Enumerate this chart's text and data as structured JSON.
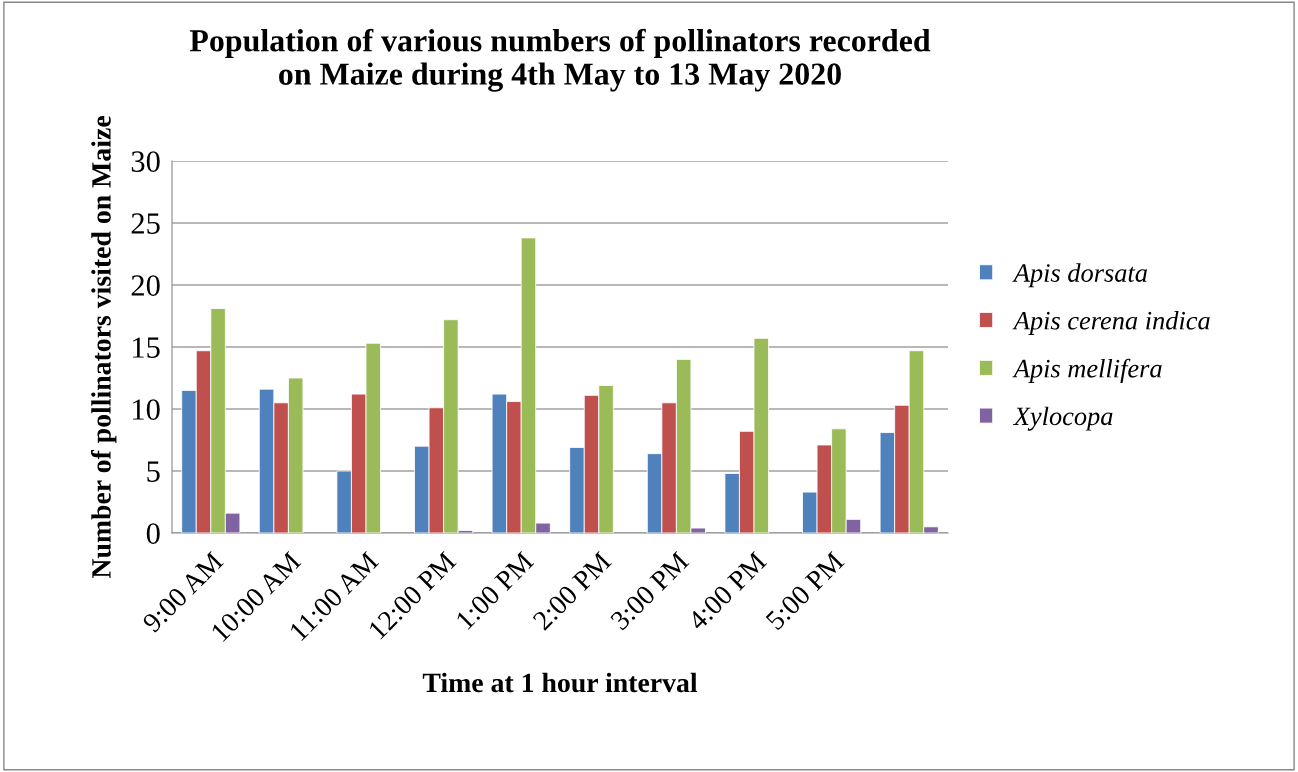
{
  "chart_data": {
    "type": "bar",
    "title": "Population of various numbers of pollinators recorded\non Maize during 4th May to 13 May 2020",
    "xlabel": "Time at 1 hour interval",
    "ylabel": "Number of pollinators visited on Maize",
    "categories": [
      "9:00 AM",
      "10:00 AM",
      "11:00 AM",
      "12:00 PM",
      "1:00 PM",
      "2:00 PM",
      "3:00 PM",
      "4:00 PM",
      "5:00 PM",
      null
    ],
    "series": [
      {
        "name": "Apis dorsata",
        "color": "#4f81bd",
        "values": [
          11.5,
          11.6,
          5.0,
          7.0,
          11.2,
          6.9,
          6.4,
          4.8,
          3.3,
          8.1
        ]
      },
      {
        "name": "Apis cerena indica",
        "color": "#c0504d",
        "values": [
          14.7,
          10.5,
          11.2,
          10.1,
          10.6,
          11.1,
          10.5,
          8.2,
          7.1,
          10.3
        ]
      },
      {
        "name": "Apis mellifera",
        "color": "#9bbb59",
        "values": [
          18.1,
          12.5,
          15.3,
          17.2,
          23.8,
          11.9,
          14.0,
          15.7,
          8.4,
          14.7
        ]
      },
      {
        "name": "Xylocopa",
        "color": "#8064a2",
        "values": [
          1.6,
          null,
          null,
          0.2,
          0.8,
          null,
          0.4,
          null,
          1.1,
          0.5
        ]
      }
    ],
    "ylim": [
      0,
      30
    ],
    "yticks": [
      0,
      5,
      10,
      15,
      20,
      25,
      30
    ],
    "grid": "y",
    "legend": "right"
  }
}
